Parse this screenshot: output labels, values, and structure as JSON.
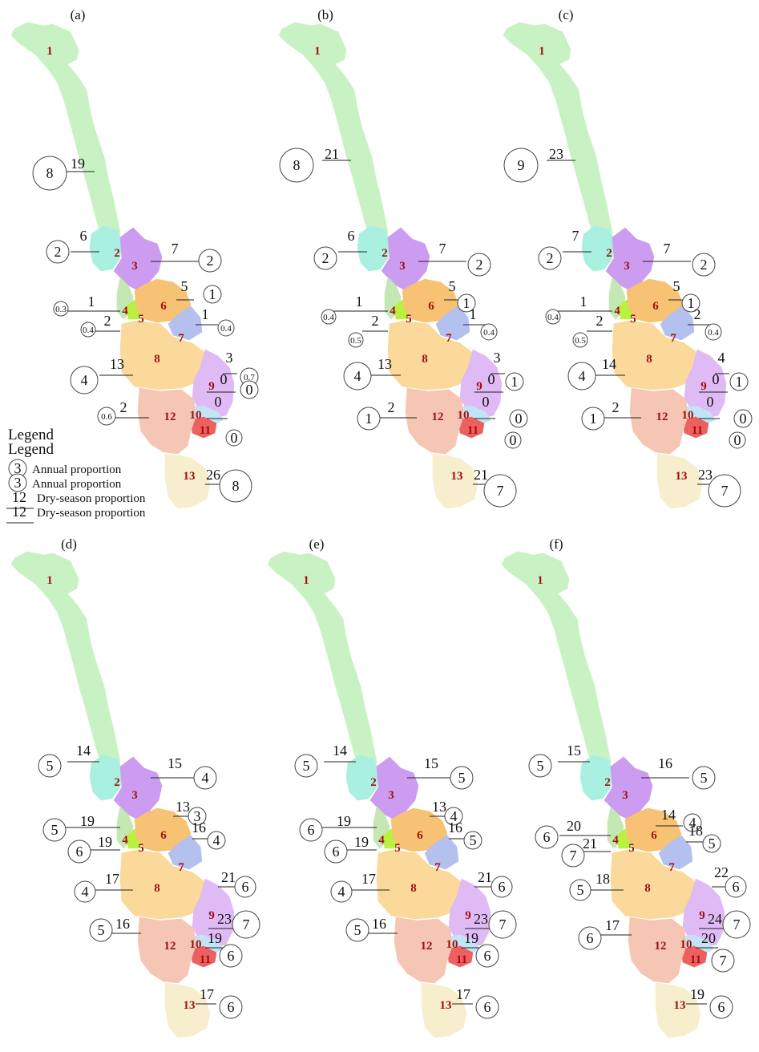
{
  "colors": {
    "r1": "#c9f2c4",
    "r2": "#aaf0e0",
    "r3": "#cc9cf0",
    "r4": "#c3e8b4",
    "r5": "#baf040",
    "r6": "#f8c274",
    "r7": "#b4c0ee",
    "r8": "#fad99a",
    "r9": "#e0baf4",
    "r10": "#c2e4f6",
    "r11": "#ec6060",
    "r12": "#f6c6b4",
    "r13": "#f6eecc",
    "region_label": "#a01010"
  },
  "region_labels": [
    "1",
    "2",
    "3",
    "4",
    "5",
    "6",
    "7",
    "8",
    "9",
    "10",
    "11",
    "12",
    "13"
  ],
  "panels": [
    {
      "label": "(a)",
      "values": [
        {
          "region": "1",
          "dry": "19",
          "annual": "8"
        },
        {
          "region": "2",
          "dry": "6",
          "annual": "2"
        },
        {
          "region": "3",
          "dry": "7",
          "annual": "2"
        },
        {
          "region": "4",
          "dry": "1",
          "annual": "0.3"
        },
        {
          "region": "5",
          "dry": "2",
          "annual": "0.4"
        },
        {
          "region": "6",
          "dry": "5",
          "annual": "1"
        },
        {
          "region": "7",
          "dry": "1",
          "annual": "0.4"
        },
        {
          "region": "8",
          "dry": "13",
          "annual": "4"
        },
        {
          "region": "9",
          "dry": "3",
          "annual": "0.7"
        },
        {
          "region": "10",
          "dry": "0",
          "annual": "0"
        },
        {
          "region": "11",
          "dry": "0",
          "annual": "0"
        },
        {
          "region": "12",
          "dry": "2",
          "annual": "0.6"
        },
        {
          "region": "13",
          "dry": "26",
          "annual": "8"
        }
      ]
    },
    {
      "label": "(b)",
      "values": [
        {
          "region": "1",
          "dry": "21",
          "annual": "8"
        },
        {
          "region": "2",
          "dry": "6",
          "annual": "2"
        },
        {
          "region": "3",
          "dry": "7",
          "annual": "2"
        },
        {
          "region": "4",
          "dry": "1",
          "annual": "0.4"
        },
        {
          "region": "5",
          "dry": "2",
          "annual": "0.5"
        },
        {
          "region": "6",
          "dry": "5",
          "annual": "1"
        },
        {
          "region": "7",
          "dry": "1",
          "annual": "0.4"
        },
        {
          "region": "8",
          "dry": "13",
          "annual": "4"
        },
        {
          "region": "9",
          "dry": "3",
          "annual": "1"
        },
        {
          "region": "10",
          "dry": "0",
          "annual": "0"
        },
        {
          "region": "11",
          "dry": "0",
          "annual": "0"
        },
        {
          "region": "12",
          "dry": "2",
          "annual": "1"
        },
        {
          "region": "13",
          "dry": "21",
          "annual": "7"
        }
      ]
    },
    {
      "label": "(c)",
      "values": [
        {
          "region": "1",
          "dry": "23",
          "annual": "9"
        },
        {
          "region": "2",
          "dry": "7",
          "annual": "2"
        },
        {
          "region": "3",
          "dry": "7",
          "annual": "2"
        },
        {
          "region": "4",
          "dry": "1",
          "annual": "0.4"
        },
        {
          "region": "5",
          "dry": "2",
          "annual": "0.5"
        },
        {
          "region": "6",
          "dry": "5",
          "annual": "1"
        },
        {
          "region": "7",
          "dry": "2",
          "annual": "0.4"
        },
        {
          "region": "8",
          "dry": "14",
          "annual": "4"
        },
        {
          "region": "9",
          "dry": "4",
          "annual": "1"
        },
        {
          "region": "10",
          "dry": "0",
          "annual": "0"
        },
        {
          "region": "11",
          "dry": "0",
          "annual": "0"
        },
        {
          "region": "12",
          "dry": "2",
          "annual": "1"
        },
        {
          "region": "13",
          "dry": "23",
          "annual": "7"
        }
      ]
    },
    {
      "label": "(d)",
      "values": [
        {
          "region": "2",
          "dry": "14",
          "annual": "5"
        },
        {
          "region": "3",
          "dry": "15",
          "annual": "4"
        },
        {
          "region": "4",
          "dry": "19",
          "annual": "5"
        },
        {
          "region": "5",
          "dry": "19",
          "annual": "6"
        },
        {
          "region": "6",
          "dry": "13",
          "annual": "3"
        },
        {
          "region": "7",
          "dry": "16",
          "annual": "4"
        },
        {
          "region": "8",
          "dry": "17",
          "annual": "4"
        },
        {
          "region": "9",
          "dry": "21",
          "annual": "6"
        },
        {
          "region": "10",
          "dry": "23",
          "annual": "7"
        },
        {
          "region": "11",
          "dry": "19",
          "annual": "6"
        },
        {
          "region": "12",
          "dry": "16",
          "annual": "5"
        },
        {
          "region": "13",
          "dry": "17",
          "annual": "6"
        }
      ]
    },
    {
      "label": "(e)",
      "values": [
        {
          "region": "2",
          "dry": "14",
          "annual": "5"
        },
        {
          "region": "3",
          "dry": "15",
          "annual": "5"
        },
        {
          "region": "4",
          "dry": "19",
          "annual": "6"
        },
        {
          "region": "5",
          "dry": "19",
          "annual": "6"
        },
        {
          "region": "6",
          "dry": "13",
          "annual": "4"
        },
        {
          "region": "7",
          "dry": "16",
          "annual": "5"
        },
        {
          "region": "8",
          "dry": "17",
          "annual": "4"
        },
        {
          "region": "9",
          "dry": "21",
          "annual": "6"
        },
        {
          "region": "10",
          "dry": "23",
          "annual": "7"
        },
        {
          "region": "11",
          "dry": "19",
          "annual": "6"
        },
        {
          "region": "12",
          "dry": "16",
          "annual": "5"
        },
        {
          "region": "13",
          "dry": "17",
          "annual": "6"
        }
      ]
    },
    {
      "label": "(f)",
      "values": [
        {
          "region": "2",
          "dry": "15",
          "annual": "5"
        },
        {
          "region": "3",
          "dry": "16",
          "annual": "5"
        },
        {
          "region": "4",
          "dry": "20",
          "annual": "6"
        },
        {
          "region": "5",
          "dry": "21",
          "annual": "7"
        },
        {
          "region": "6",
          "dry": "14",
          "annual": "4"
        },
        {
          "region": "7",
          "dry": "18",
          "annual": "5"
        },
        {
          "region": "8",
          "dry": "18",
          "annual": "5"
        },
        {
          "region": "9",
          "dry": "22",
          "annual": "6"
        },
        {
          "region": "10",
          "dry": "24",
          "annual": "7"
        },
        {
          "region": "11",
          "dry": "20",
          "annual": "7"
        },
        {
          "region": "12",
          "dry": "17",
          "annual": "6"
        },
        {
          "region": "13",
          "dry": "19",
          "annual": "6"
        }
      ]
    }
  ],
  "legend": {
    "title": "Legend",
    "annual_example": "3",
    "annual_text": "Annual proportion",
    "dry_example": "12",
    "dry_text": "Dry-season proportion"
  }
}
